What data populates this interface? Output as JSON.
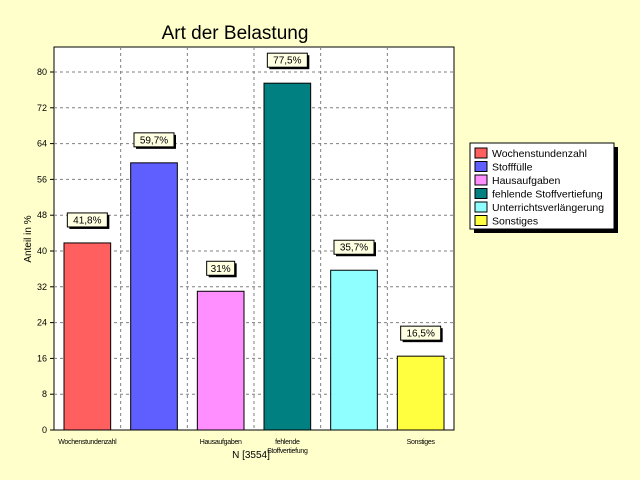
{
  "chart_data": {
    "type": "bar",
    "title": "Art der Belastung",
    "xlabel": "N [3554]",
    "ylabel": "Anteil in %",
    "ylim": [
      0,
      80
    ],
    "yticks": [
      0,
      8,
      16,
      24,
      32,
      40,
      48,
      56,
      64,
      72,
      80
    ],
    "grid": true,
    "legend_position": "right",
    "categories": [
      "Wochenstundenzahl",
      "Stofffülle",
      "Hausaufgaben",
      "fehlende Stoffvertiefung",
      "Unterrichtsverlängerung",
      "Sonstiges"
    ],
    "xtick_labels": [
      "Wochenstundenzahl",
      "",
      "Hausaufgaben",
      "fehlende Stoffvertiefung",
      "",
      "Sonstiges"
    ],
    "values": [
      41.8,
      59.7,
      31,
      77.5,
      35.7,
      16.5
    ],
    "value_labels": [
      "41,8%",
      "59,7%",
      "31%",
      "77,5%",
      "35,7%",
      "16,5%"
    ],
    "colors": [
      "#ff5f5f",
      "#5f5fff",
      "#ff8fff",
      "#008080",
      "#8fffff",
      "#ffff3f"
    ]
  }
}
